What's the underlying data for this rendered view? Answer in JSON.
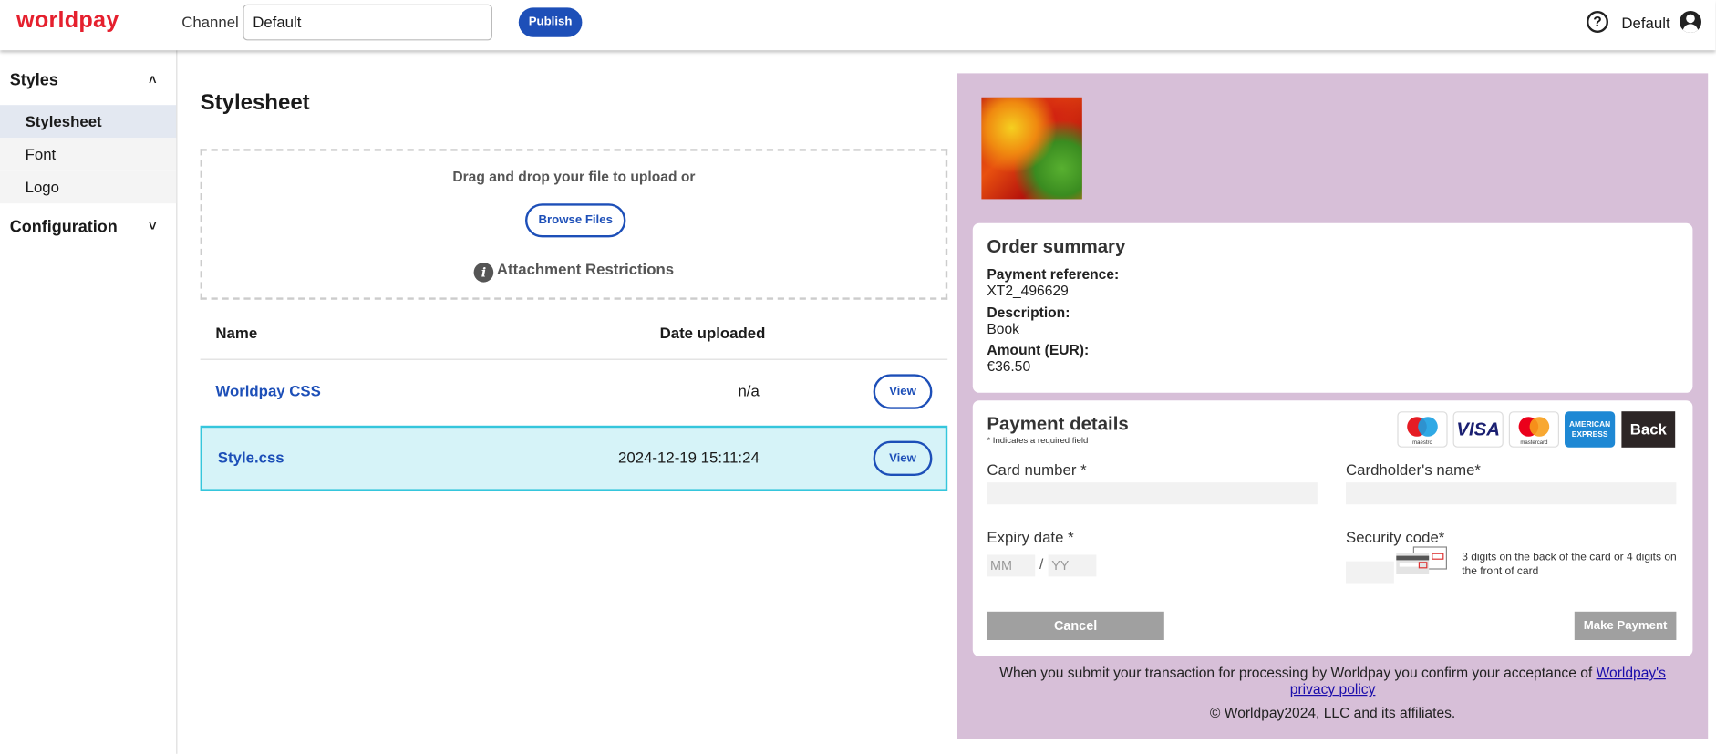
{
  "header": {
    "logo": "worldpay",
    "channel_label": "Channel",
    "channel_value": "Default",
    "publish_label": "Publish",
    "help_icon": "question-circle-icon",
    "user_label": "Default",
    "user_icon": "account-circle-icon"
  },
  "sidebar": {
    "groups": [
      {
        "label": "Styles",
        "expanded": true,
        "items": [
          {
            "label": "Stylesheet",
            "active": true
          },
          {
            "label": "Font",
            "active": false
          },
          {
            "label": "Logo",
            "active": false
          }
        ]
      },
      {
        "label": "Configuration",
        "expanded": false
      }
    ]
  },
  "main": {
    "title": "Stylesheet",
    "upload": {
      "prompt": "Drag and drop your file to upload or",
      "browse_label": "Browse Files",
      "restrictions_label": "Attachment Restrictions"
    },
    "table": {
      "headers": {
        "name": "Name",
        "date": "Date uploaded"
      },
      "rows": [
        {
          "name": "Worldpay CSS",
          "date": "n/a",
          "action": "View",
          "selected": false
        },
        {
          "name": "Style.css",
          "date": "2024-12-19 15:11:24",
          "action": "View",
          "selected": true
        }
      ]
    }
  },
  "preview": {
    "background": "#d7bfd8",
    "order": {
      "title": "Order summary",
      "ref_label": "Payment reference:",
      "ref_value": "XT2_496629",
      "desc_label": "Description:",
      "desc_value": "Book",
      "amount_label": "Amount (EUR):",
      "amount_value": "€36.50"
    },
    "payment": {
      "title": "Payment details",
      "required_note": "* Indicates a required field",
      "card_logos": {
        "maestro": "maestro",
        "visa": "VISA",
        "mastercard": "mastercard",
        "amex": "AMERICAN EXPRESS"
      },
      "back_label": "Back",
      "card_number_label": "Card number *",
      "cardholder_label": "Cardholder's name*",
      "expiry_label": "Expiry date *",
      "mm_placeholder": "MM",
      "expiry_sep": "/",
      "yy_placeholder": "YY",
      "security_label": "Security code*",
      "security_hint": "3 digits on the back of the card or 4 digits on the front of card",
      "cancel_label": "Cancel",
      "submit_label": "Make Payment"
    },
    "footer": {
      "consent_text": "When you submit your transaction for processing by Worldpay you confirm your acceptance of ",
      "privacy_link": "Worldpay's privacy policy",
      "copyright": "© Worldpay2024, LLC and its affiliates."
    }
  }
}
